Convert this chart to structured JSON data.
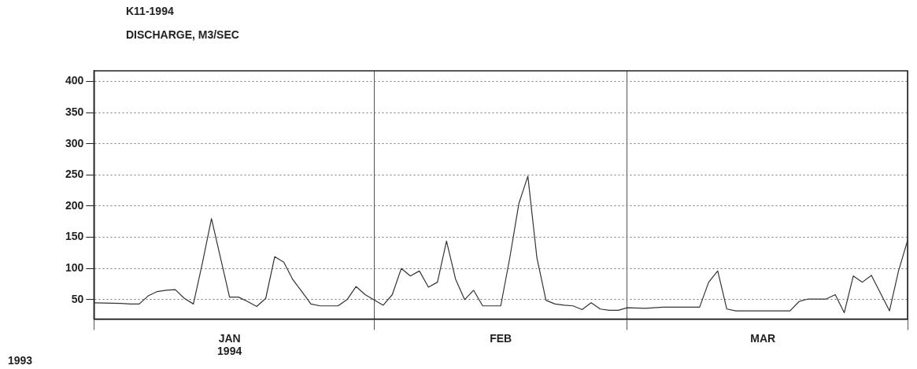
{
  "chart_data": {
    "type": "line",
    "title": "K11-1994",
    "subtitle": "DISCHARGE, M3/SEC",
    "annotations": [
      "1993"
    ],
    "series": [
      {
        "color": "#333333",
        "x": [
          "1994-01-01",
          "1994-01-04",
          "1994-01-05",
          "1994-01-06",
          "1994-01-07",
          "1994-01-08",
          "1994-01-09",
          "1994-01-10",
          "1994-01-11",
          "1994-01-12",
          "1994-01-13",
          "1994-01-14",
          "1994-01-16",
          "1994-01-17",
          "1994-01-18",
          "1994-01-19",
          "1994-01-20",
          "1994-01-21",
          "1994-01-22",
          "1994-01-23",
          "1994-01-24",
          "1994-01-25",
          "1994-01-26",
          "1994-01-28",
          "1994-01-29",
          "1994-01-30",
          "1994-01-31",
          "1994-02-02",
          "1994-02-03",
          "1994-02-04",
          "1994-02-05",
          "1994-02-06",
          "1994-02-07",
          "1994-02-08",
          "1994-02-09",
          "1994-02-10",
          "1994-02-11",
          "1994-02-12",
          "1994-02-13",
          "1994-02-15",
          "1994-02-16",
          "1994-02-17",
          "1994-02-18",
          "1994-02-19",
          "1994-02-20",
          "1994-02-21",
          "1994-02-22",
          "1994-02-23",
          "1994-02-24",
          "1994-02-25",
          "1994-02-26",
          "1994-02-27",
          "1994-02-28",
          "1994-03-01",
          "1994-03-03",
          "1994-03-05",
          "1994-03-09",
          "1994-03-10",
          "1994-03-11",
          "1994-03-12",
          "1994-03-13",
          "1994-03-19",
          "1994-03-20",
          "1994-03-21",
          "1994-03-23",
          "1994-03-24",
          "1994-03-25",
          "1994-03-26",
          "1994-03-27",
          "1994-03-28",
          "1994-03-30",
          "1994-03-31",
          "1994-04-01"
        ],
        "values": [
          45,
          44,
          43,
          43,
          56,
          63,
          65,
          66,
          52,
          43,
          109,
          180,
          54,
          54,
          47,
          39,
          52,
          119,
          110,
          82,
          63,
          43,
          40,
          40,
          50,
          71,
          58,
          41,
          58,
          100,
          88,
          96,
          70,
          78,
          144,
          83,
          50,
          65,
          40,
          40,
          117,
          204,
          248,
          117,
          49,
          43,
          41,
          40,
          34,
          45,
          35,
          33,
          33,
          37,
          36,
          38,
          38,
          78,
          96,
          35,
          32,
          32,
          47,
          51,
          51,
          58,
          29,
          88,
          78,
          89,
          32,
          96,
          145
        ]
      }
    ],
    "xlim": [
      "1994-01-01",
      "1994-04-01"
    ],
    "xticks": [
      {
        "value": "1994-01-01",
        "label": null
      },
      {
        "value": "1994-01-16",
        "label": "JAN\n1994"
      },
      {
        "value": "1994-02-01",
        "label": null
      },
      {
        "value": "1994-02-15",
        "label": "FEB"
      },
      {
        "value": "1994-03-01",
        "label": null
      },
      {
        "value": "1994-03-16",
        "label": "MAR"
      },
      {
        "value": "1994-04-01",
        "label": null
      }
    ],
    "ylim": [
      19,
      417
    ],
    "yticks": [
      50,
      100,
      150,
      200,
      250,
      300,
      350,
      400
    ],
    "grid": true,
    "line_style": "solid",
    "marker": "none"
  }
}
